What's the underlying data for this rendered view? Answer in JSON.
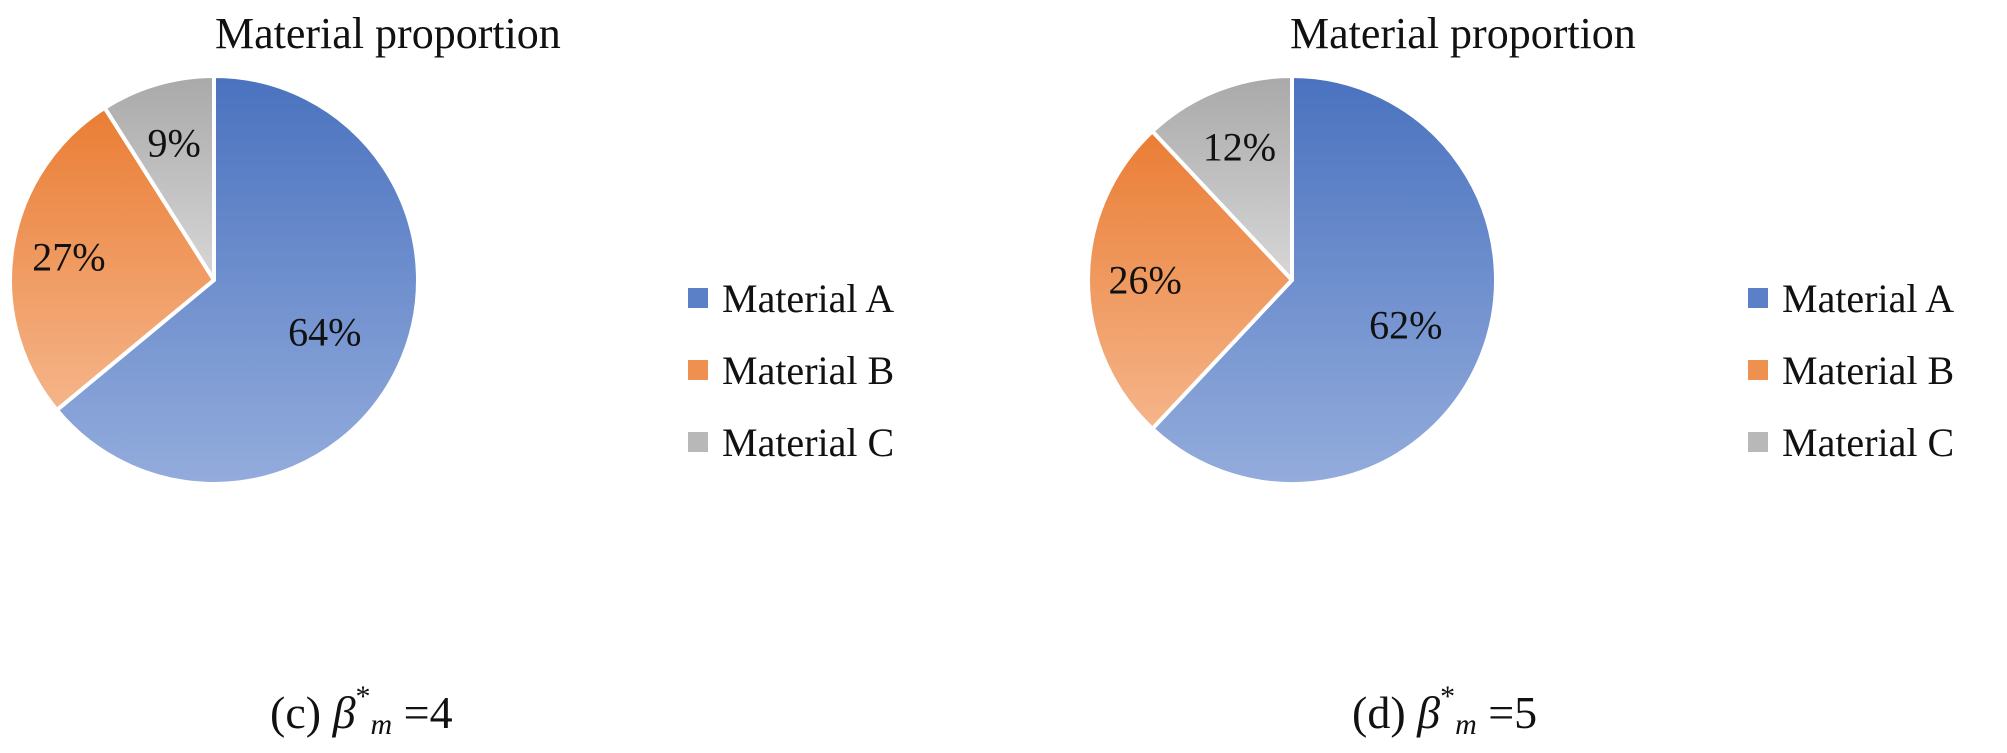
{
  "chart_data": [
    {
      "type": "pie",
      "title": "Material proportion",
      "categories": [
        "Material A",
        "Material B",
        "Material C"
      ],
      "values": [
        64,
        27,
        9
      ],
      "value_labels": [
        "64%",
        "27%",
        "9%"
      ],
      "caption": {
        "prefix": "(c) ",
        "symbol": "β",
        "sup": "*",
        "sub": "m",
        "suffix": " =4"
      },
      "legend_position": "right"
    },
    {
      "type": "pie",
      "title": "Material proportion",
      "categories": [
        "Material A",
        "Material B",
        "Material C"
      ],
      "values": [
        62,
        26,
        12
      ],
      "value_labels": [
        "62%",
        "26%",
        "12%"
      ],
      "caption": {
        "prefix": "(d) ",
        "symbol": "β",
        "sup": "*",
        "sub": "m",
        "suffix": " =5"
      },
      "legend_position": "right"
    }
  ],
  "colors": {
    "material_a": [
      "#4a72bf",
      "#93acdc"
    ],
    "material_b": [
      "#ea7d34",
      "#f5b58a"
    ],
    "material_c": [
      "#a9a9a9",
      "#d7d7d7"
    ],
    "legend": [
      "#5b80c7",
      "#ee9050",
      "#b8b8b8"
    ],
    "border": "#ffffff"
  }
}
